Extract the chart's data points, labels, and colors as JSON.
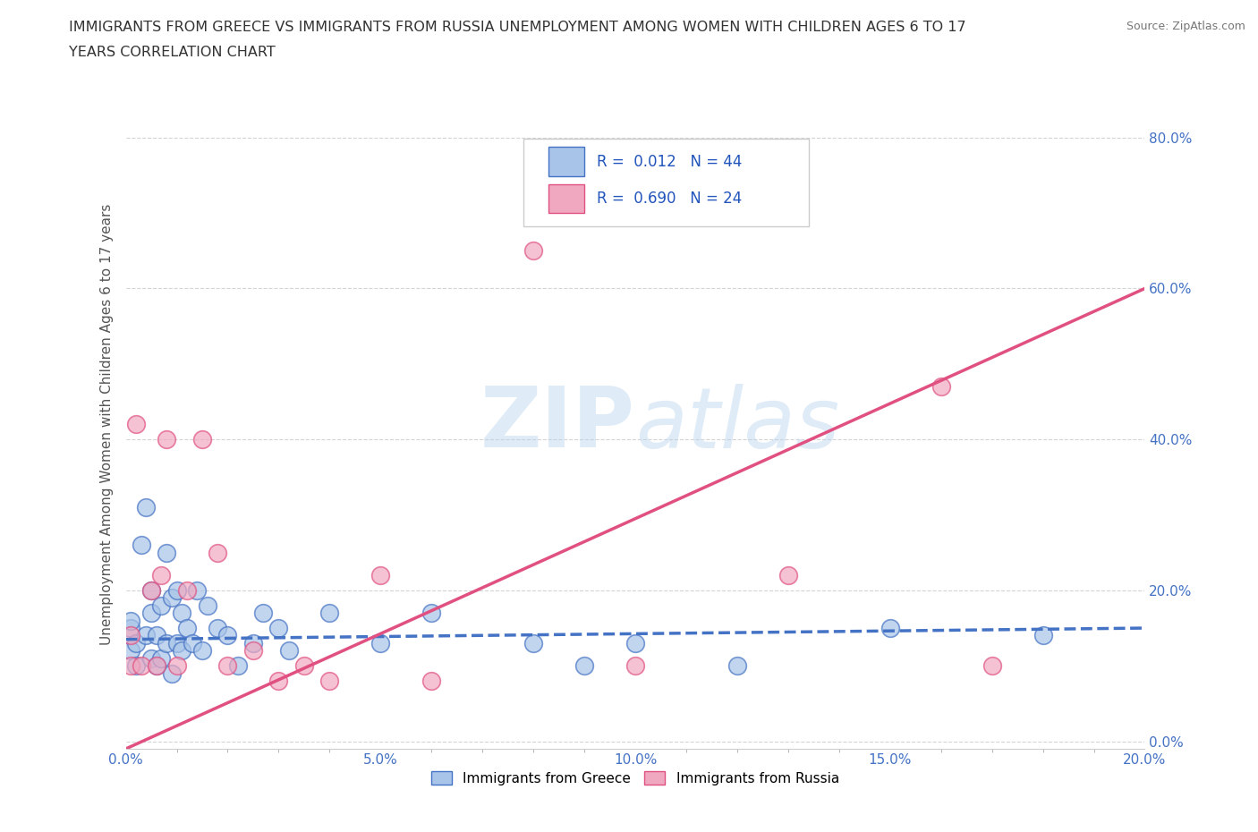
{
  "title_line1": "IMMIGRANTS FROM GREECE VS IMMIGRANTS FROM RUSSIA UNEMPLOYMENT AMONG WOMEN WITH CHILDREN AGES 6 TO 17",
  "title_line2": "YEARS CORRELATION CHART",
  "source": "Source: ZipAtlas.com",
  "ylabel": "Unemployment Among Women with Children Ages 6 to 17 years",
  "xlim": [
    0.0,
    0.2
  ],
  "ylim": [
    -0.01,
    0.85
  ],
  "xticks": [
    0.0,
    0.05,
    0.1,
    0.15,
    0.2
  ],
  "yticks": [
    0.0,
    0.2,
    0.4,
    0.6,
    0.8
  ],
  "xtick_labels": [
    "0.0%",
    "",
    "",
    "",
    "20.0%"
  ],
  "ytick_labels": [
    "",
    "20.0%",
    "40.0%",
    "60.0%",
    "80.0%"
  ],
  "greece_color": "#a8c4e8",
  "russia_color": "#f0a8c0",
  "greece_edge_color": "#4472c4",
  "russia_edge_color": "#e05080",
  "greece_line_color": "#4472c4",
  "russia_line_color": "#e05080",
  "R_greece": 0.012,
  "N_greece": 44,
  "R_russia": 0.69,
  "N_russia": 24,
  "watermark": "ZIPatlas",
  "legend_label_greece": "Immigrants from Greece",
  "legend_label_russia": "Immigrants from Russia",
  "greece_scatter_x": [
    0.001,
    0.001,
    0.001,
    0.002,
    0.002,
    0.003,
    0.004,
    0.004,
    0.005,
    0.005,
    0.005,
    0.006,
    0.006,
    0.007,
    0.007,
    0.008,
    0.008,
    0.009,
    0.009,
    0.01,
    0.01,
    0.011,
    0.011,
    0.012,
    0.013,
    0.014,
    0.015,
    0.016,
    0.018,
    0.02,
    0.022,
    0.025,
    0.027,
    0.03,
    0.032,
    0.04,
    0.05,
    0.06,
    0.08,
    0.09,
    0.1,
    0.12,
    0.15,
    0.18
  ],
  "greece_scatter_y": [
    0.12,
    0.15,
    0.16,
    0.1,
    0.13,
    0.26,
    0.14,
    0.31,
    0.11,
    0.17,
    0.2,
    0.1,
    0.14,
    0.11,
    0.18,
    0.13,
    0.25,
    0.09,
    0.19,
    0.13,
    0.2,
    0.12,
    0.17,
    0.15,
    0.13,
    0.2,
    0.12,
    0.18,
    0.15,
    0.14,
    0.1,
    0.13,
    0.17,
    0.15,
    0.12,
    0.17,
    0.13,
    0.17,
    0.13,
    0.1,
    0.13,
    0.1,
    0.15,
    0.14
  ],
  "russia_scatter_x": [
    0.001,
    0.001,
    0.002,
    0.003,
    0.005,
    0.006,
    0.007,
    0.008,
    0.01,
    0.012,
    0.015,
    0.018,
    0.02,
    0.025,
    0.03,
    0.035,
    0.04,
    0.05,
    0.06,
    0.08,
    0.1,
    0.13,
    0.16,
    0.17
  ],
  "russia_scatter_y": [
    0.1,
    0.14,
    0.42,
    0.1,
    0.2,
    0.1,
    0.22,
    0.4,
    0.1,
    0.2,
    0.4,
    0.25,
    0.1,
    0.12,
    0.08,
    0.1,
    0.08,
    0.22,
    0.08,
    0.65,
    0.1,
    0.22,
    0.47,
    0.1
  ],
  "greece_trendline_x": [
    0.0,
    0.2
  ],
  "greece_trendline_y": [
    0.135,
    0.15
  ],
  "russia_trendline_x": [
    0.0,
    0.2
  ],
  "russia_trendline_y": [
    -0.01,
    0.6
  ],
  "background_color": "#ffffff",
  "grid_color": "#d0d0d0",
  "tick_color": "#4472c4"
}
